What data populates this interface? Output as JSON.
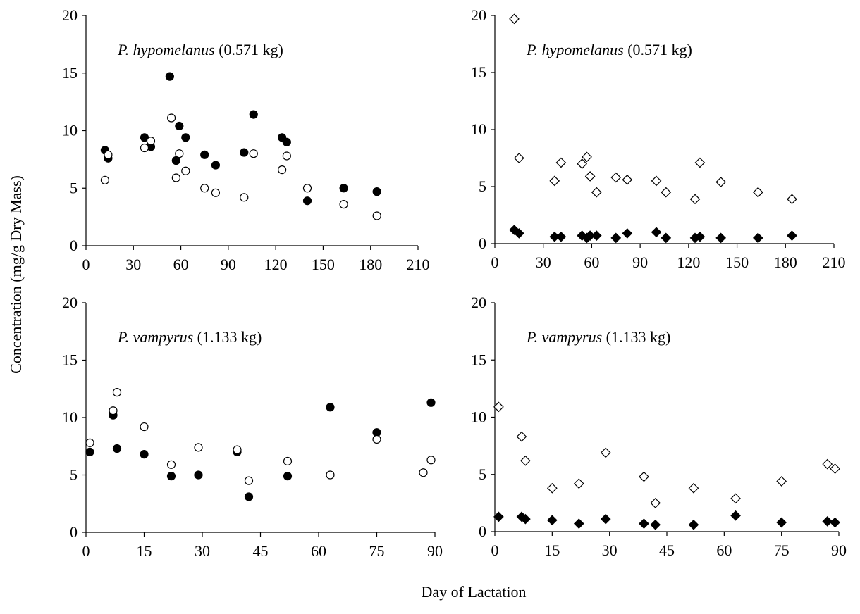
{
  "figure": {
    "ylabel": "Concentration (mg/g Dry Mass)",
    "xlabel": "Day of Lactation"
  },
  "chart_data": [
    {
      "type": "scatter",
      "panel": "top-left",
      "title_species": "P. hypomelanus",
      "title_mass": "(0.571 kg)",
      "xlim": [
        0,
        210
      ],
      "ylim": [
        0,
        20
      ],
      "xticks": [
        0,
        30,
        60,
        90,
        120,
        150,
        180,
        210
      ],
      "yticks": [
        0,
        5,
        10,
        15,
        20
      ],
      "grid": false,
      "series": [
        {
          "marker": "circle-filled",
          "color": "#000000",
          "points": [
            [
              12,
              8.3
            ],
            [
              14,
              7.6
            ],
            [
              37,
              9.4
            ],
            [
              41,
              8.6
            ],
            [
              53,
              14.7
            ],
            [
              57,
              7.4
            ],
            [
              59,
              10.4
            ],
            [
              63,
              9.4
            ],
            [
              75,
              7.9
            ],
            [
              82,
              7.0
            ],
            [
              100,
              8.1
            ],
            [
              106,
              11.4
            ],
            [
              124,
              9.4
            ],
            [
              127,
              9.0
            ],
            [
              140,
              3.9
            ],
            [
              163,
              5.0
            ],
            [
              184,
              4.7
            ]
          ]
        },
        {
          "marker": "circle-open",
          "color": "#000000",
          "points": [
            [
              12,
              5.7
            ],
            [
              14,
              7.9
            ],
            [
              37,
              8.5
            ],
            [
              41,
              9.1
            ],
            [
              54,
              11.1
            ],
            [
              57,
              5.9
            ],
            [
              59,
              8.0
            ],
            [
              63,
              6.5
            ],
            [
              75,
              5.0
            ],
            [
              82,
              4.6
            ],
            [
              100,
              4.2
            ],
            [
              106,
              8.0
            ],
            [
              124,
              6.6
            ],
            [
              127,
              7.8
            ],
            [
              140,
              5.0
            ],
            [
              163,
              3.6
            ],
            [
              184,
              2.6
            ]
          ]
        }
      ]
    },
    {
      "type": "scatter",
      "panel": "top-right",
      "title_species": "P. hypomelanus",
      "title_mass": "(0.571 kg)",
      "xlim": [
        0,
        210
      ],
      "ylim": [
        0,
        20
      ],
      "xticks": [
        0,
        30,
        60,
        90,
        120,
        150,
        180,
        210
      ],
      "yticks": [
        0,
        5,
        10,
        15,
        20
      ],
      "grid": false,
      "series": [
        {
          "marker": "diamond-open",
          "color": "#000000",
          "points": [
            [
              12,
              19.7
            ],
            [
              15,
              7.5
            ],
            [
              37,
              5.5
            ],
            [
              41,
              7.1
            ],
            [
              54,
              7.0
            ],
            [
              57,
              7.6
            ],
            [
              59,
              5.9
            ],
            [
              63,
              4.5
            ],
            [
              75,
              5.8
            ],
            [
              82,
              5.6
            ],
            [
              100,
              5.5
            ],
            [
              106,
              4.5
            ],
            [
              124,
              3.9
            ],
            [
              127,
              7.1
            ],
            [
              140,
              5.4
            ],
            [
              163,
              4.5
            ],
            [
              184,
              3.9
            ]
          ]
        },
        {
          "marker": "diamond-filled",
          "color": "#000000",
          "points": [
            [
              12,
              1.2
            ],
            [
              15,
              0.9
            ],
            [
              37,
              0.6
            ],
            [
              41,
              0.6
            ],
            [
              54,
              0.7
            ],
            [
              57,
              0.5
            ],
            [
              59,
              0.7
            ],
            [
              63,
              0.7
            ],
            [
              75,
              0.5
            ],
            [
              82,
              0.9
            ],
            [
              100,
              1.0
            ],
            [
              106,
              0.5
            ],
            [
              124,
              0.5
            ],
            [
              127,
              0.6
            ],
            [
              140,
              0.5
            ],
            [
              163,
              0.5
            ],
            [
              184,
              0.7
            ]
          ]
        }
      ]
    },
    {
      "type": "scatter",
      "panel": "bottom-left",
      "title_species": "P. vampyrus",
      "title_mass": "(1.133 kg)",
      "xlim": [
        0,
        90
      ],
      "ylim": [
        0,
        20
      ],
      "xticks": [
        0,
        15,
        30,
        45,
        60,
        75,
        90
      ],
      "yticks": [
        0,
        5,
        10,
        15,
        20
      ],
      "grid": false,
      "series": [
        {
          "marker": "circle-filled",
          "color": "#000000",
          "points": [
            [
              1,
              7.0
            ],
            [
              7,
              10.2
            ],
            [
              8,
              7.3
            ],
            [
              15,
              6.8
            ],
            [
              22,
              4.9
            ],
            [
              29,
              5.0
            ],
            [
              39,
              7.0
            ],
            [
              42,
              3.1
            ],
            [
              52,
              4.9
            ],
            [
              63,
              10.9
            ],
            [
              75,
              8.7
            ],
            [
              89,
              11.3
            ]
          ]
        },
        {
          "marker": "circle-open",
          "color": "#000000",
          "points": [
            [
              1,
              7.8
            ],
            [
              7,
              10.6
            ],
            [
              8,
              12.2
            ],
            [
              15,
              9.2
            ],
            [
              22,
              5.9
            ],
            [
              29,
              7.4
            ],
            [
              39,
              7.2
            ],
            [
              42,
              4.5
            ],
            [
              52,
              6.2
            ],
            [
              63,
              5.0
            ],
            [
              75,
              8.1
            ],
            [
              87,
              5.2
            ],
            [
              89,
              6.3
            ]
          ]
        }
      ]
    },
    {
      "type": "scatter",
      "panel": "bottom-right",
      "title_species": "P. vampyrus",
      "title_mass": "(1.133 kg)",
      "xlim": [
        0,
        90
      ],
      "ylim": [
        0,
        20
      ],
      "xticks": [
        0,
        15,
        30,
        45,
        60,
        75,
        90
      ],
      "yticks": [
        0,
        5,
        10,
        15,
        20
      ],
      "grid": false,
      "series": [
        {
          "marker": "diamond-open",
          "color": "#000000",
          "points": [
            [
              1,
              10.9
            ],
            [
              7,
              8.3
            ],
            [
              8,
              6.2
            ],
            [
              15,
              3.8
            ],
            [
              22,
              4.2
            ],
            [
              29,
              6.9
            ],
            [
              39,
              4.8
            ],
            [
              42,
              2.5
            ],
            [
              52,
              3.8
            ],
            [
              63,
              2.9
            ],
            [
              75,
              4.4
            ],
            [
              87,
              5.9
            ],
            [
              89,
              5.5
            ]
          ]
        },
        {
          "marker": "diamond-filled",
          "color": "#000000",
          "points": [
            [
              1,
              1.3
            ],
            [
              7,
              1.3
            ],
            [
              8,
              1.1
            ],
            [
              15,
              1.0
            ],
            [
              22,
              0.7
            ],
            [
              29,
              1.1
            ],
            [
              39,
              0.7
            ],
            [
              42,
              0.6
            ],
            [
              52,
              0.6
            ],
            [
              63,
              1.4
            ],
            [
              75,
              0.8
            ],
            [
              87,
              0.9
            ],
            [
              89,
              0.8
            ]
          ]
        }
      ]
    }
  ]
}
